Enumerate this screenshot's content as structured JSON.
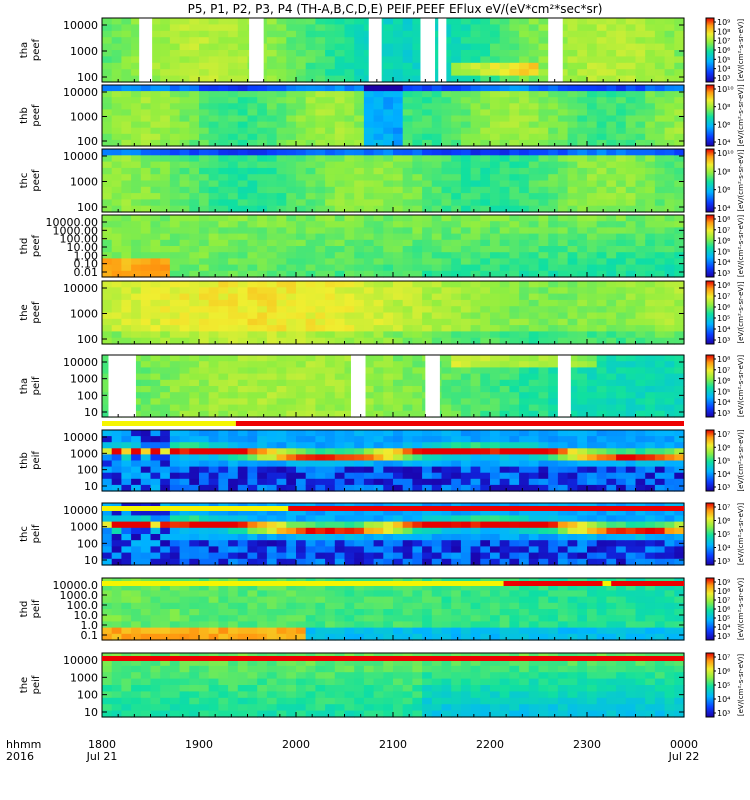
{
  "title": "P5, P1, P2, P3, P4 (TH-A,B,C,D,E) PEIF,PEEF EFlux eV/(eV*cm²*sec*sr)",
  "time_axis": {
    "row1_label": "hhmm",
    "row2_label": "2016",
    "ticks": [
      "1800",
      "1900",
      "2000",
      "2100",
      "2200",
      "2300",
      "0000"
    ],
    "date_labels": [
      "Jul 21",
      "Jul 22"
    ]
  },
  "colorbar_unit": "[eV/(cm²-s-sr-eV)]",
  "colors": {
    "cold": "#1b00a8",
    "hot": "#e60000",
    "mid": "#eaf03c",
    "gap": "#ffffff",
    "status_red": "#ee0000",
    "status_yellow": "#f5f500"
  },
  "chart_data": {
    "type": "heatmap",
    "x_range": [
      "2016-07-21 18:00",
      "2016-07-22 00:00"
    ],
    "panels": [
      {
        "id": "tha_peef",
        "ylabel": [
          "tha",
          "peef"
        ],
        "yticks": [
          "10000",
          "1000",
          "100"
        ],
        "cbar_ticks": [
          "10⁹",
          "10⁸",
          "10⁷",
          "10⁶",
          "10⁵",
          "10⁴",
          "10³"
        ],
        "cbar_label": "[eV/(cm²-s-sr-eV)]",
        "data_gaps": [
          [
            "18:23",
            "18:31"
          ],
          [
            "19:31",
            "19:40"
          ],
          [
            "20:45",
            "20:53"
          ],
          [
            "21:17",
            "21:26"
          ],
          [
            "21:28",
            "21:33"
          ],
          [
            "22:36",
            "22:45"
          ]
        ]
      },
      {
        "id": "thb_peef",
        "ylabel": [
          "thb",
          "peef"
        ],
        "yticks": [
          "10000",
          "1000",
          "100"
        ],
        "cbar_ticks": [
          "10¹⁰",
          "10⁸",
          "10⁶",
          "10⁴"
        ],
        "cbar_label": "[eV/(cm²-s-sr-eV)]"
      },
      {
        "id": "thc_peef",
        "ylabel": [
          "thc",
          "peef"
        ],
        "yticks": [
          "10000",
          "1000",
          "100"
        ],
        "cbar_ticks": [
          "10¹⁰",
          "10⁸",
          "10⁶",
          "10⁴"
        ],
        "cbar_label": "[eV/(cm²-s-sr-eV)]"
      },
      {
        "id": "thd_peef",
        "ylabel": [
          "thd",
          "peef"
        ],
        "yticks": [
          "10000.00",
          "1000.00",
          "100.00",
          "10.00",
          "1.00",
          "0.10",
          "0.01"
        ],
        "cbar_ticks": [
          "10⁸",
          "10⁷",
          "10⁶",
          "10⁵",
          "10⁴",
          "10³"
        ],
        "cbar_label": "[eV/(cm²-s-sr-eV)]"
      },
      {
        "id": "the_peef",
        "ylabel": [
          "the",
          "peef"
        ],
        "yticks": [
          "10000",
          "1000",
          "100"
        ],
        "cbar_ticks": [
          "10⁸",
          "10⁷",
          "10⁶",
          "10⁵",
          "10⁴",
          "10³"
        ],
        "cbar_label": "[eV/(cm²-s-sr-eV)]"
      },
      {
        "id": "tha_peif",
        "ylabel": [
          "tha",
          "peif"
        ],
        "yticks": [
          "10000",
          "1000",
          "100",
          "10"
        ],
        "cbar_ticks": [
          "10⁸",
          "10⁷",
          "10⁶",
          "10⁵",
          "10⁴",
          "10³"
        ],
        "cbar_label": "[eV/(cm²-s-sr-eV)]",
        "data_gaps": [
          [
            "18:04",
            "18:21"
          ],
          [
            "20:34",
            "20:43"
          ],
          [
            "21:20",
            "21:29"
          ],
          [
            "22:42",
            "22:50"
          ]
        ]
      },
      {
        "id": "thb_peif",
        "ylabel": [
          "thb",
          "peif"
        ],
        "yticks": [
          "10000",
          "1000",
          "100",
          "10"
        ],
        "cbar_ticks": [
          "10⁷",
          "10⁶",
          "10⁵",
          "10⁴",
          "10³"
        ],
        "cbar_label": "[eV/(cm²-s-sr-eV)]"
      },
      {
        "id": "thc_peif",
        "ylabel": [
          "thc",
          "peif"
        ],
        "yticks": [
          "10000",
          "1000",
          "100",
          "10"
        ],
        "cbar_ticks": [
          "10⁷",
          "10⁶",
          "10⁵",
          "10⁴",
          "10³"
        ],
        "cbar_label": "[eV/(cm²-s-sr-eV)]"
      },
      {
        "id": "thd_peif",
        "ylabel": [
          "thd",
          "peif"
        ],
        "yticks": [
          "10000.0",
          "1000.0",
          "100.0",
          "10.0",
          "1.0",
          "0.1"
        ],
        "cbar_ticks": [
          "10⁹",
          "10⁸",
          "10⁷",
          "10⁶",
          "10⁵",
          "10⁴",
          "10³"
        ],
        "cbar_label": "[eV/(cm²-s-sr-eV)]"
      },
      {
        "id": "the_peif",
        "ylabel": [
          "the",
          "peif"
        ],
        "yticks": [
          "10000",
          "1000",
          "100",
          "10"
        ],
        "cbar_ticks": [
          "10⁷",
          "10⁶",
          "10⁵",
          "10⁴",
          "10³"
        ],
        "cbar_label": "[eV/(cm²-s-sr-eV)]"
      }
    ]
  }
}
